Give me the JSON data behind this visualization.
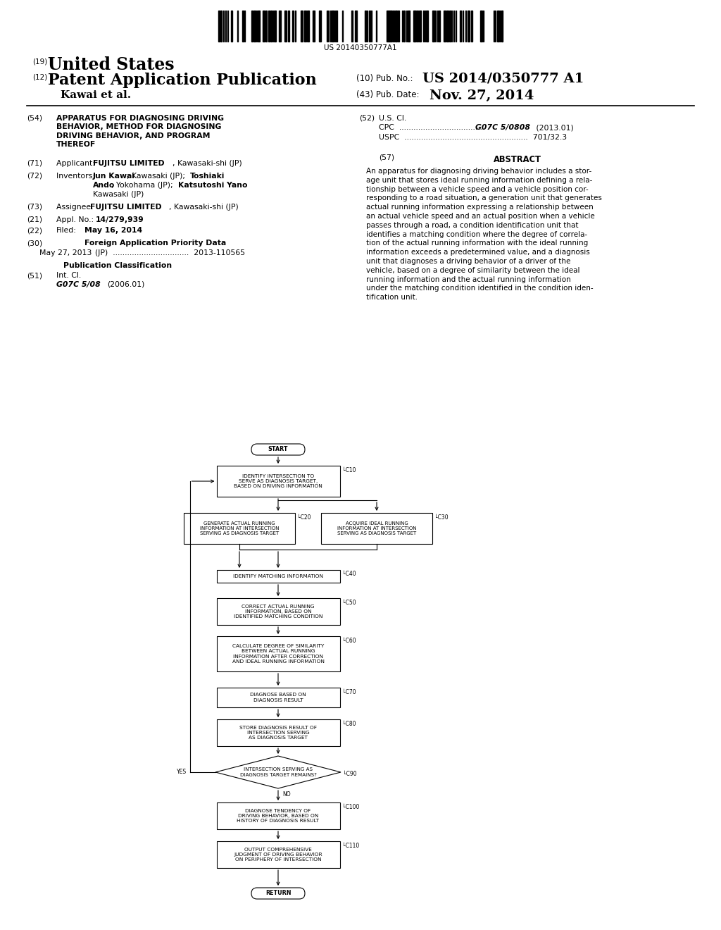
{
  "bg_color": "#ffffff",
  "barcode_text": "US 20140350777A1",
  "flowchart": {
    "start_text": "START",
    "c10_text": "IDENTIFY INTERSECTION TO\nSERVE AS DIAGNOSIS TARGET,\nBASED ON DRIVING INFORMATION",
    "c10_label": "└C10",
    "c20_text": "GENERATE ACTUAL RUNNING\nINFORMATION AT INTERSECTION\nSERVING AS DIAGNOSIS TARGET",
    "c20_label": "└C20",
    "c30_text": "ACQUIRE IDEAL RUNNING\nINFORMATION AT INTERSECTION\nSERVING AS DIAGNOSIS TARGET",
    "c30_label": "└C30",
    "c40_text": "IDENTIFY MATCHING INFORMATION",
    "c40_label": "└C40",
    "c50_text": "CORRECT ACTUAL RUNNING\nINFORMATION, BASED ON\nIDENTIFIED MATCHING CONDITION",
    "c50_label": "└C50",
    "c60_text": "CALCULATE DEGREE OF SIMILARITY\nBETWEEN ACTUAL RUNNING\nINFORMATION AFTER CORRECTION\nAND IDEAL RUNNING INFORMATION",
    "c60_label": "└C60",
    "c70_text": "DIAGNOSE BASED ON\nDIAGNOSIS RESULT",
    "c70_label": "└C70",
    "c80_text": "STORE DIAGNOSIS RESULT OF\nINTERSECTION SERVING\nAS DIAGNOSIS TARGET",
    "c80_label": "└C80",
    "c90_text": "INTERSECTION SERVING AS\nDIAGNOSIS TARGET REMAINS?",
    "c90_label": "└C90",
    "c90_yes": "YES",
    "c90_no": "↓NO",
    "c100_text": "DIAGNOSE TENDENCY OF\nDRIVING BEHAVIOR, BASED ON\nHISTORY OF DIAGNOSIS RESULT",
    "c100_label": "└C100",
    "c110_text": "OUTPUT COMPREHENSIVE\nJUDGMENT OF DRIVING BEHAVIOR\nON PERIPHERY OF INTERSECTION",
    "c110_label": "└C110",
    "return_text": "RETURN"
  }
}
